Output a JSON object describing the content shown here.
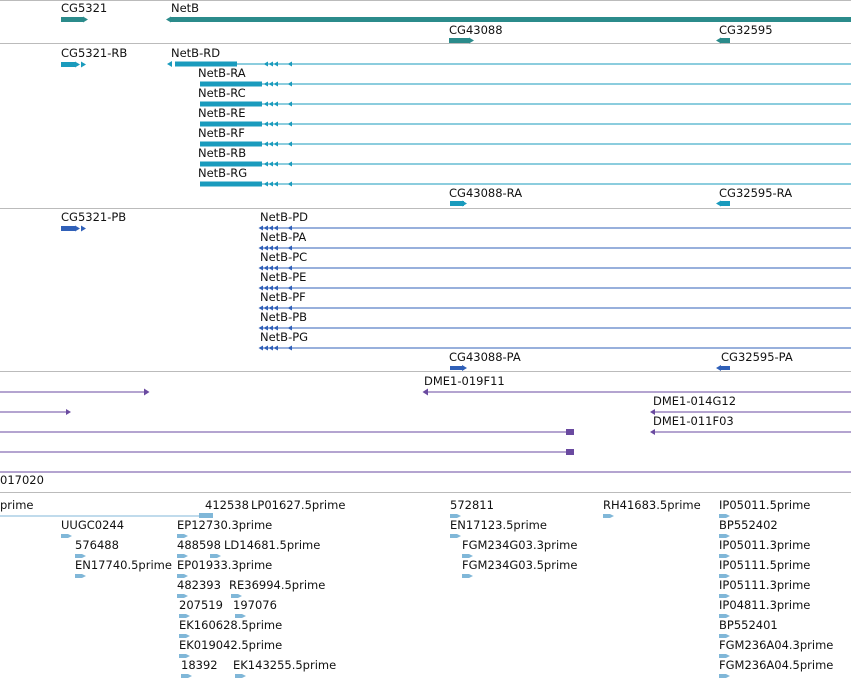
{
  "colors": {
    "gene": "#2b8b8b",
    "transcript_ra": "#1a9bbd",
    "protein_pa": "#3060b8",
    "clone": "#6a4aa0",
    "est": "#80b7d8",
    "separator": "#bbbbbb"
  },
  "labels": {
    "g_cg5321": "CG5321",
    "g_netb": "NetB",
    "g_cg43088": "CG43088",
    "g_cg32595": "CG32595",
    "t_cg5321_rb": "CG5321-RB",
    "t_netb_rd": "NetB-RD",
    "t_netb_ra": "NetB-RA",
    "t_netb_rc": "NetB-RC",
    "t_netb_re": "NetB-RE",
    "t_netb_rf": "NetB-RF",
    "t_netb_rb": "NetB-RB",
    "t_netb_rg": "NetB-RG",
    "t_cg43088_ra": "CG43088-RA",
    "t_cg32595_ra": "CG32595-RA",
    "p_cg5321_pb": "CG5321-PB",
    "p_netb_pd": "NetB-PD",
    "p_netb_pa": "NetB-PA",
    "p_netb_pc": "NetB-PC",
    "p_netb_pe": "NetB-PE",
    "p_netb_pf": "NetB-PF",
    "p_netb_pb": "NetB-PB",
    "p_netb_pg": "NetB-PG",
    "p_cg43088_pa": "CG43088-PA",
    "p_cg32595_pa": "CG32595-PA",
    "c_019f11": "DME1-019F11",
    "c_014g12": "DME1-014G12",
    "c_011f03": "DME1-011F03",
    "c_017020": "017020",
    "e_prime": "prime",
    "e_412538": "412538",
    "e_lp01627": "LP01627.5prime",
    "e_572811": "572811",
    "e_rh41683": "RH41683.5prime",
    "e_ip05011_5": "IP05011.5prime",
    "e_uugc0244": "UUGC0244",
    "e_ep12730": "EP12730.3prime",
    "e_en17123": "EN17123.5prime",
    "e_bp552402": "BP552402",
    "e_576488": "576488",
    "e_488598": "488598",
    "e_ld14681": "LD14681.5prime",
    "e_fgm234g03_3": "FGM234G03.3prime",
    "e_ip05011_3": "IP05011.3prime",
    "e_en17740": "EN17740.5prime",
    "e_ep01933": "EP01933.3prime",
    "e_fgm234g03_5": "FGM234G03.5prime",
    "e_ip05111_5": "IP05111.5prime",
    "e_482393": "482393",
    "e_re36994": "RE36994.5prime",
    "e_ip05111_3": "IP05111.3prime",
    "e_207519": "207519",
    "e_197076": "197076",
    "e_ip04811": "IP04811.3prime",
    "e_ek160628": "EK160628.5prime",
    "e_bp552401": "BP552401",
    "e_ek019042": "EK019042.5prime",
    "e_fgm236a04_3": "FGM236A04.3prime",
    "e_18392": "18392",
    "e_ek143255": "EK143255.5prime",
    "e_fgm236a04_5": "FGM236A04.5prime"
  }
}
